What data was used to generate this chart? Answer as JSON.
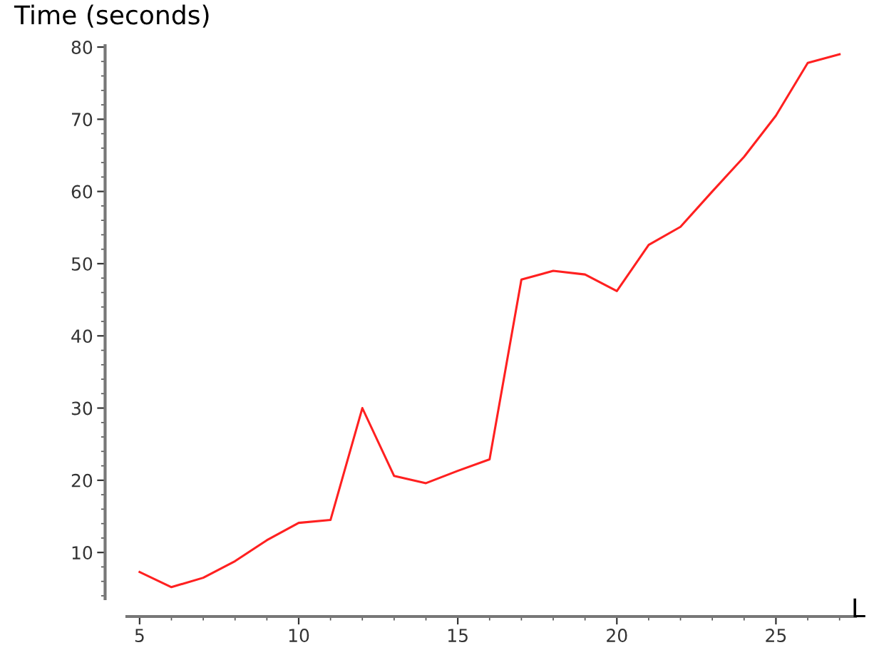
{
  "chart_data": {
    "type": "line",
    "ylabel": "Time (seconds)",
    "xlabel": "L",
    "x": [
      5,
      6,
      7,
      8,
      9,
      10,
      11,
      12,
      13,
      14,
      15,
      16,
      17,
      18,
      19,
      20,
      21,
      22,
      23,
      24,
      25,
      26,
      27
    ],
    "series": [
      {
        "color": "#ff2020",
        "values": [
          7.3,
          5.2,
          6.5,
          8.8,
          11.7,
          14.1,
          14.5,
          30.0,
          20.6,
          19.6,
          21.3,
          22.9,
          47.8,
          49.0,
          48.5,
          46.2,
          52.6,
          55.1,
          60.0,
          64.8,
          70.5,
          77.8,
          79.0
        ]
      }
    ],
    "xlim": [
      4.6,
      27.5
    ],
    "ylim": [
      3.6,
      80.2
    ],
    "xticks": [
      5,
      10,
      15,
      20,
      25
    ],
    "yticks": [
      10,
      20,
      30,
      40,
      50,
      60,
      70,
      80
    ],
    "grid": false,
    "marker": "none",
    "line_style": "solid"
  }
}
